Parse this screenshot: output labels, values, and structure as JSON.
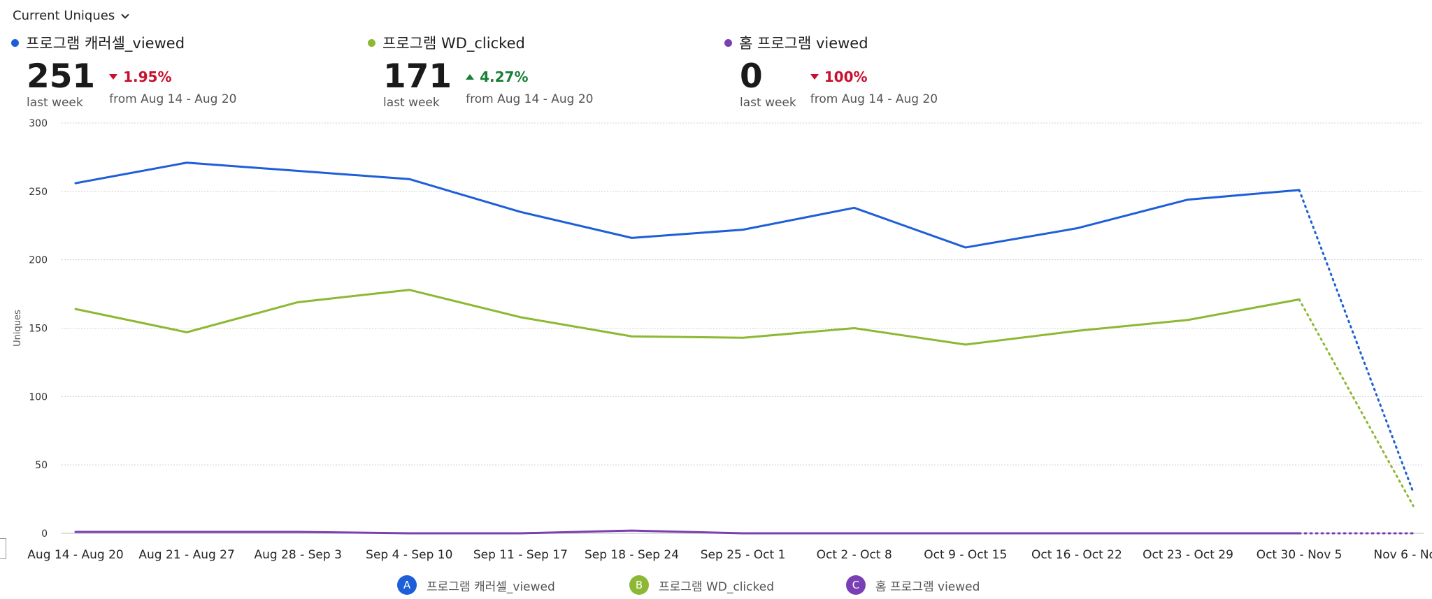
{
  "header": {
    "metric_label": "Current Uniques"
  },
  "kpis": [
    {
      "name": "프로그램 캐러셀_viewed",
      "color": "#1e5fd8",
      "value": "251",
      "period": "last week",
      "delta": "1.95%",
      "direction": "down",
      "from": "from Aug 14 - Aug 20"
    },
    {
      "name": "프로그램 WD_clicked",
      "color": "#8db833",
      "value": "171",
      "period": "last week",
      "delta": "4.27%",
      "direction": "up",
      "from": "from Aug 14 - Aug 20"
    },
    {
      "name": "홈 프로그램 viewed",
      "color": "#7b3fb5",
      "value": "0",
      "period": "last week",
      "delta": "100%",
      "direction": "down",
      "from": "from Aug 14 - Aug 20"
    }
  ],
  "legend": [
    {
      "badge": "A",
      "name": "프로그램 캐러셀_viewed",
      "color": "#1e5fd8"
    },
    {
      "badge": "B",
      "name": "프로그램 WD_clicked",
      "color": "#8db833"
    },
    {
      "badge": "C",
      "name": "홈 프로그램 viewed",
      "color": "#7b3fb5"
    }
  ],
  "chart_data": {
    "type": "line",
    "ylabel": "Uniques",
    "ylim": [
      0,
      300
    ],
    "yticks": [
      "0",
      "50",
      "100",
      "150",
      "200",
      "250",
      "300"
    ],
    "grid": true,
    "categories": [
      "Aug 14 - Aug 20",
      "Aug 21 - Aug 27",
      "Aug 28 - Sep 3",
      "Sep 4 - Sep 10",
      "Sep 11 - Sep 17",
      "Sep 18 - Sep 24",
      "Sep 25 - Oct 1",
      "Oct 2 - Oct 8",
      "Oct 9 - Oct 15",
      "Oct 16 - Oct 22",
      "Oct 23 - Oct 29",
      "Oct 30 - Nov 5",
      "Nov 6 - No..."
    ],
    "incomplete_last_period": true,
    "series": [
      {
        "name": "프로그램 캐러셀_viewed",
        "color": "#1e5fd8",
        "values": [
          256,
          271,
          265,
          259,
          235,
          216,
          222,
          238,
          209,
          223,
          244,
          251,
          30
        ]
      },
      {
        "name": "프로그램 WD_clicked",
        "color": "#8db833",
        "values": [
          164,
          147,
          169,
          178,
          158,
          144,
          143,
          150,
          138,
          148,
          156,
          171,
          20
        ]
      },
      {
        "name": "홈 프로그램 viewed",
        "color": "#7b3fb5",
        "values": [
          1,
          1,
          1,
          0,
          0,
          2,
          0,
          0,
          0,
          0,
          0,
          0,
          0
        ]
      }
    ]
  }
}
